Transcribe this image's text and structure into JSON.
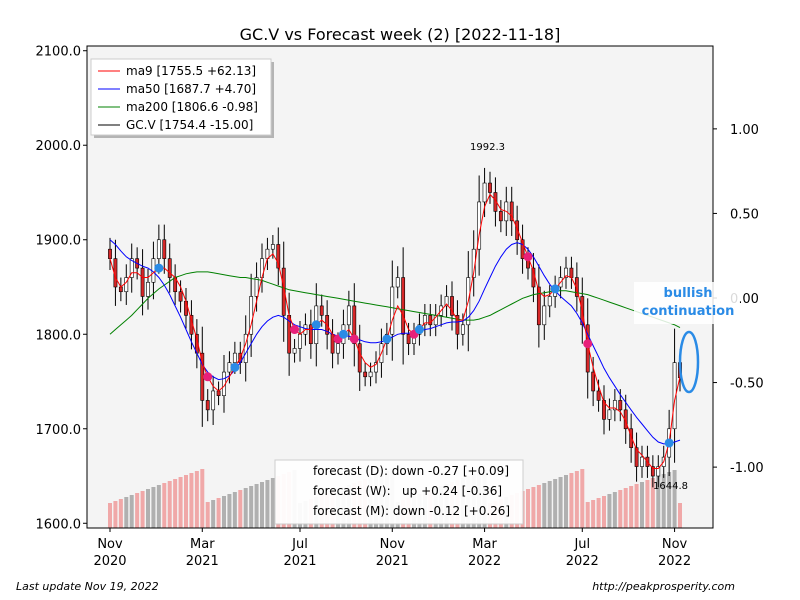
{
  "chart_data": {
    "type": "candlestick",
    "title": "GC.V vs Forecast week (2) [2022-11-18]",
    "left_axis": {
      "range": [
        1595,
        2105
      ],
      "ticks": [
        1600,
        1700,
        1800,
        1900,
        2000,
        2100
      ],
      "tick_labels": [
        "1600.0",
        "1700.0",
        "1800.0",
        "1900.0",
        "2000.0",
        "2100.0"
      ]
    },
    "right_axis": {
      "range": [
        -1.36,
        1.49
      ],
      "ticks": [
        -1.0,
        -0.5,
        0.0,
        0.5,
        1.0
      ],
      "tick_labels": [
        "-1.00",
        "-0.50",
        "0.00",
        "0.50",
        "1.00"
      ]
    },
    "x_axis": {
      "labels": [
        {
          "line1": "Nov",
          "line2": "2020",
          "week": 0
        },
        {
          "line1": "Mar",
          "line2": "2021",
          "week": 17
        },
        {
          "line1": "Jul",
          "line2": "2021",
          "week": 35
        },
        {
          "line1": "Nov",
          "line2": "2021",
          "week": 52
        },
        {
          "line1": "Mar",
          "line2": "2022",
          "week": 69
        },
        {
          "line1": "Jul",
          "line2": "2022",
          "week": 87
        },
        {
          "line1": "Nov",
          "line2": "2022",
          "week": 104
        }
      ],
      "weeks_total": 106
    },
    "legend": [
      {
        "label": "ma9 [1755.5 +62.13]",
        "color": "#ff0000"
      },
      {
        "label": "ma50 [1687.7 +4.70]",
        "color": "#0000ff"
      },
      {
        "label": "ma200 [1806.6 -0.98]",
        "color": "#008000"
      },
      {
        "label": "GC.V [1754.4 -15.00]",
        "color": "#000000"
      }
    ],
    "forecast_box": [
      "forecast (D): down -0.27 [+0.09]",
      "forecast (W):   up +0.24 [-0.36]",
      "forecast (M): down -0.12 [+0.26]"
    ],
    "annotations": {
      "high": "1992.3",
      "low": "1644.8"
    },
    "callout": [
      "bullish",
      "continuation"
    ],
    "close": [
      1880,
      1850,
      1845,
      1860,
      1880,
      1870,
      1840,
      1855,
      1880,
      1900,
      1880,
      1860,
      1845,
      1835,
      1820,
      1800,
      1780,
      1730,
      1720,
      1740,
      1735,
      1760,
      1770,
      1780,
      1770,
      1800,
      1840,
      1860,
      1880,
      1890,
      1895,
      1870,
      1820,
      1780,
      1785,
      1800,
      1810,
      1790,
      1830,
      1820,
      1800,
      1780,
      1790,
      1810,
      1830,
      1790,
      1760,
      1755,
      1760,
      1770,
      1790,
      1800,
      1850,
      1860,
      1800,
      1790,
      1800,
      1810,
      1820,
      1810,
      1820,
      1830,
      1840,
      1820,
      1800,
      1810,
      1860,
      1890,
      1940,
      1960,
      1950,
      1930,
      1920,
      1940,
      1920,
      1900,
      1880,
      1870,
      1850,
      1810,
      1830,
      1840,
      1850,
      1860,
      1870,
      1860,
      1840,
      1810,
      1760,
      1740,
      1730,
      1710,
      1720,
      1730,
      1720,
      1700,
      1680,
      1660,
      1670,
      1660,
      1650,
      1660,
      1670,
      1700,
      1770,
      1754
    ],
    "ma9": [
      1880,
      1860,
      1850,
      1855,
      1865,
      1865,
      1860,
      1860,
      1865,
      1870,
      1870,
      1865,
      1860,
      1850,
      1835,
      1815,
      1795,
      1770,
      1755,
      1745,
      1740,
      1745,
      1755,
      1765,
      1775,
      1790,
      1810,
      1835,
      1860,
      1880,
      1885,
      1875,
      1850,
      1820,
      1805,
      1800,
      1805,
      1805,
      1810,
      1815,
      1810,
      1800,
      1795,
      1800,
      1805,
      1795,
      1780,
      1770,
      1765,
      1768,
      1780,
      1795,
      1815,
      1830,
      1820,
      1805,
      1800,
      1805,
      1812,
      1812,
      1818,
      1825,
      1832,
      1825,
      1815,
      1815,
      1835,
      1865,
      1905,
      1935,
      1948,
      1942,
      1932,
      1930,
      1925,
      1912,
      1897,
      1882,
      1867,
      1845,
      1840,
      1842,
      1848,
      1855,
      1862,
      1860,
      1848,
      1825,
      1790,
      1765,
      1745,
      1728,
      1722,
      1722,
      1718,
      1708,
      1692,
      1678,
      1672,
      1665,
      1658,
      1658,
      1665,
      1685,
      1730,
      1755
    ],
    "ma50": [
      1900,
      1895,
      1888,
      1882,
      1878,
      1875,
      1872,
      1870,
      1866,
      1860,
      1852,
      1842,
      1830,
      1818,
      1805,
      1792,
      1780,
      1768,
      1760,
      1755,
      1752,
      1753,
      1756,
      1762,
      1770,
      1780,
      1790,
      1800,
      1808,
      1814,
      1818,
      1820,
      1818,
      1814,
      1810,
      1808,
      1806,
      1805,
      1805,
      1805,
      1803,
      1800,
      1798,
      1798,
      1798,
      1796,
      1794,
      1792,
      1791,
      1791,
      1792,
      1794,
      1797,
      1800,
      1801,
      1801,
      1802,
      1803,
      1805,
      1806,
      1808,
      1810,
      1812,
      1813,
      1813,
      1814,
      1818,
      1825,
      1835,
      1848,
      1860,
      1872,
      1882,
      1890,
      1895,
      1897,
      1895,
      1890,
      1882,
      1872,
      1862,
      1853,
      1846,
      1840,
      1835,
      1830,
      1822,
      1812,
      1800,
      1788,
      1776,
      1764,
      1754,
      1745,
      1736,
      1728,
      1720,
      1712,
      1705,
      1698,
      1691,
      1686,
      1684,
      1684,
      1686,
      1688
    ],
    "ma200": [
      1800,
      1805,
      1810,
      1815,
      1820,
      1826,
      1832,
      1838,
      1843,
      1848,
      1852,
      1856,
      1860,
      1862,
      1864,
      1865,
      1866,
      1866,
      1866,
      1865,
      1864,
      1863,
      1862,
      1861,
      1860,
      1860,
      1859,
      1858,
      1857,
      1855,
      1853,
      1851,
      1849,
      1847,
      1846,
      1845,
      1844,
      1843,
      1842,
      1841,
      1840,
      1839,
      1838,
      1837,
      1836,
      1835,
      1834,
      1833,
      1832,
      1831,
      1830,
      1829,
      1828,
      1827,
      1826,
      1825,
      1824,
      1823,
      1822,
      1821,
      1820,
      1819,
      1818,
      1817,
      1816,
      1815,
      1815,
      1815,
      1816,
      1818,
      1820,
      1823,
      1826,
      1829,
      1832,
      1835,
      1838,
      1840,
      1842,
      1843,
      1844,
      1845,
      1846,
      1846,
      1846,
      1845,
      1844,
      1843,
      1842,
      1840,
      1838,
      1836,
      1834,
      1832,
      1830,
      1828,
      1826,
      1824,
      1822,
      1820,
      1818,
      1816,
      1814,
      1812,
      1810,
      1807
    ]
  },
  "footer": {
    "left": "Last update Nov 19, 2022",
    "right": "http://peakprosperity.com"
  }
}
